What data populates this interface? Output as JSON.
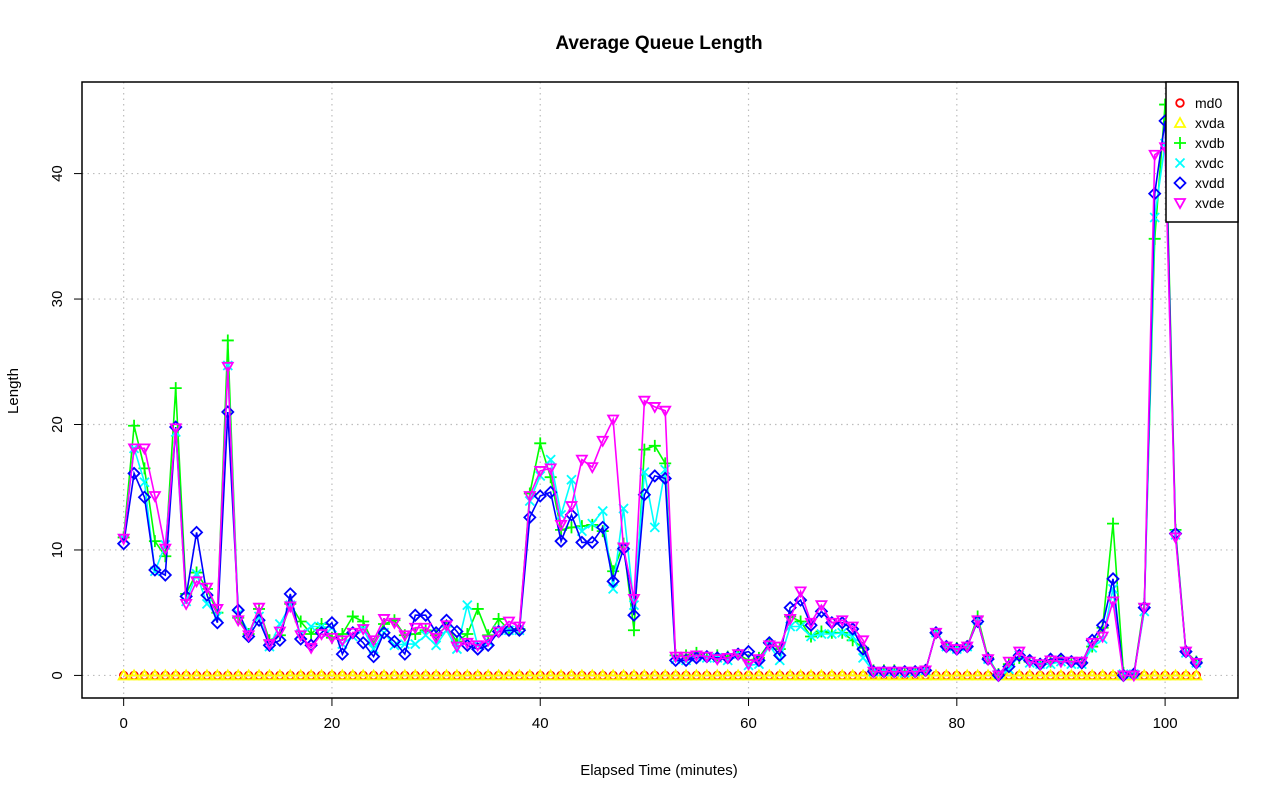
{
  "chart_data": {
    "type": "line",
    "title": "Average Queue Length",
    "xlabel": "Elapsed Time (minutes)",
    "ylabel": "Length",
    "xlim": [
      -4,
      107
    ],
    "ylim": [
      -1.8,
      47.3
    ],
    "x_ticks": [
      0,
      20,
      40,
      60,
      80,
      100
    ],
    "y_ticks": [
      0,
      10,
      20,
      30,
      40
    ],
    "grid": true,
    "legend_position": "top-right",
    "series": [
      {
        "name": "md0",
        "color": "#ff0000",
        "marker": "circle",
        "values": [
          0,
          0,
          0,
          0,
          0,
          0,
          0,
          0,
          0,
          0,
          0,
          0,
          0,
          0,
          0,
          0,
          0,
          0,
          0,
          0,
          0,
          0,
          0,
          0,
          0,
          0,
          0,
          0,
          0,
          0,
          0,
          0,
          0,
          0,
          0,
          0,
          0,
          0,
          0,
          0,
          0,
          0,
          0,
          0,
          0,
          0,
          0,
          0,
          0,
          0,
          0,
          0,
          0,
          0,
          0,
          0,
          0,
          0,
          0,
          0,
          0,
          0,
          0,
          0,
          0,
          0,
          0,
          0,
          0,
          0,
          0,
          0,
          0,
          0,
          0,
          0,
          0,
          0,
          0,
          0,
          0,
          0,
          0,
          0,
          0,
          0,
          0,
          0,
          0,
          0,
          0,
          0,
          0,
          0,
          0,
          0,
          0,
          0,
          0,
          0,
          0,
          0,
          0,
          0
        ]
      },
      {
        "name": "xvda",
        "color": "#ffff00",
        "marker": "triangle",
        "values": [
          0,
          0,
          0,
          0,
          0,
          0,
          0,
          0,
          0,
          0,
          0,
          0,
          0,
          0,
          0,
          0,
          0,
          0,
          0,
          0,
          0,
          0,
          0,
          0,
          0,
          0,
          0,
          0,
          0,
          0,
          0,
          0,
          0,
          0,
          0,
          0,
          0,
          0,
          0,
          0,
          0,
          0,
          0,
          0,
          0,
          0,
          0,
          0,
          0,
          0,
          0,
          0,
          0,
          0,
          0,
          0,
          0,
          0,
          0,
          0,
          0,
          0,
          0,
          0,
          0,
          0,
          0,
          0,
          0,
          0,
          0,
          0,
          0,
          0,
          0,
          0,
          0,
          0,
          0,
          0,
          0,
          0,
          0,
          0,
          0,
          0,
          0,
          0,
          0,
          0,
          0,
          0,
          0,
          0,
          0,
          0,
          0,
          0,
          0,
          0,
          0,
          0,
          0,
          0
        ]
      },
      {
        "name": "xvdb",
        "color": "#00ff00",
        "marker": "plus",
        "values": [
          11,
          19.9,
          16.5,
          10.7,
          9.5,
          22.9,
          6.5,
          8.2,
          6.9,
          5,
          26.7,
          4.6,
          3.3,
          5.3,
          2.8,
          3.2,
          5.7,
          4.3,
          3.3,
          4.1,
          3,
          3.3,
          4.7,
          4.3,
          2.5,
          4.1,
          4.4,
          3.2,
          3.3,
          3.6,
          3.2,
          3.9,
          2.7,
          3.3,
          5.3,
          3.2,
          4.5,
          3.6,
          3.7,
          14.5,
          18.5,
          15.8,
          11.6,
          11.8,
          11.9,
          12,
          11.5,
          8.3,
          10.5,
          3.6,
          18,
          18.3,
          16.9,
          1.6,
          1.6,
          1.8,
          1.5,
          1.6,
          1.5,
          1.7,
          1.2,
          1.4,
          2.6,
          2.1,
          4.7,
          4.3,
          3.1,
          3.5,
          3.4,
          3.4,
          2.8,
          2.2,
          0.4,
          0.4,
          0.4,
          0.3,
          0.3,
          0.4,
          3.4,
          2.3,
          2.2,
          2.3,
          4.7,
          1.4,
          0.1,
          0.9,
          1.4,
          1.1,
          0.9,
          1.1,
          1.3,
          1.1,
          1,
          2.3,
          3.8,
          12.1,
          0.2,
          0.1,
          5.7,
          34.8,
          45.5,
          11.6,
          1.9,
          1.1
        ]
      },
      {
        "name": "xvdc",
        "color": "#00ffff",
        "marker": "cross",
        "values": [
          10.9,
          18.1,
          15.4,
          8.3,
          10.4,
          19.4,
          5.9,
          8.1,
          5.7,
          4.7,
          24.7,
          4.9,
          3.5,
          4.7,
          2.3,
          4.1,
          5.6,
          3.3,
          3.9,
          3.9,
          3.8,
          2.5,
          3.1,
          3.7,
          2.1,
          3.4,
          2.4,
          2.5,
          2.5,
          3.2,
          2.4,
          3.6,
          2.1,
          5.6,
          2.4,
          2.7,
          3.6,
          3.6,
          3.6,
          13.9,
          15.9,
          17.2,
          12.8,
          15.6,
          11.5,
          12.1,
          13.1,
          6.9,
          13.3,
          5.6,
          16.2,
          11.8,
          16.4,
          1.3,
          1.2,
          1.5,
          1.4,
          1.4,
          1.2,
          1.7,
          0.8,
          0.9,
          2.4,
          1.2,
          3.9,
          3.9,
          3.1,
          3.3,
          3.3,
          3.4,
          3.1,
          1.4,
          0.3,
          0.3,
          0.3,
          0.2,
          0.3,
          0.4,
          3.4,
          2.3,
          2.1,
          2.3,
          4.4,
          1.3,
          0.1,
          0.5,
          1.6,
          1,
          0.9,
          0.9,
          1.1,
          0.9,
          0.9,
          2.2,
          2.9,
          6.9,
          0.1,
          0.1,
          5.1,
          36.5,
          42.4,
          11.2,
          1.8,
          1
        ]
      },
      {
        "name": "xvdd",
        "color": "#0000ff",
        "marker": "diamond",
        "values": [
          10.5,
          16.1,
          14.2,
          8.4,
          8,
          19.8,
          6.3,
          11.4,
          6.4,
          4.2,
          21,
          5.2,
          3.1,
          4.4,
          2.4,
          2.8,
          6.5,
          2.9,
          2.4,
          3.4,
          4.2,
          1.7,
          3.4,
          2.6,
          1.5,
          3.4,
          2.7,
          1.7,
          4.8,
          4.8,
          3.4,
          4.4,
          3.5,
          2.4,
          2.1,
          2.4,
          3.5,
          3.6,
          3.6,
          12.6,
          14.3,
          14.6,
          10.7,
          12.8,
          10.6,
          10.6,
          11.8,
          7.5,
          10.1,
          4.8,
          14.4,
          15.9,
          15.7,
          1.2,
          1.2,
          1.4,
          1.5,
          1.4,
          1.4,
          1.7,
          1.9,
          1.2,
          2.6,
          1.6,
          5.4,
          6,
          4,
          5.1,
          4.2,
          4.2,
          3.7,
          2.1,
          0.3,
          0.3,
          0.3,
          0.3,
          0.3,
          0.4,
          3.4,
          2.3,
          2.1,
          2.3,
          4.3,
          1.3,
          0,
          0.7,
          1.6,
          1.2,
          0.9,
          1.3,
          1.3,
          1.1,
          1,
          2.8,
          4,
          7.7,
          0,
          0.1,
          5.4,
          38.4,
          44.2,
          11.3,
          1.9,
          1
        ]
      },
      {
        "name": "xvde",
        "color": "#ff00ff",
        "marker": "triangle-down",
        "values": [
          10.9,
          18.1,
          18.1,
          14.3,
          10.1,
          19.7,
          5.7,
          7.5,
          7,
          5.3,
          24.6,
          4.4,
          3.2,
          5.4,
          2.5,
          3.5,
          5.5,
          3.2,
          2.2,
          3.3,
          3,
          2.8,
          3.4,
          3.7,
          2.8,
          4.5,
          4.2,
          3.2,
          3.8,
          3.8,
          3,
          4,
          2.3,
          2.6,
          2.4,
          2.8,
          3.5,
          4.3,
          3.9,
          14.3,
          16.3,
          16.5,
          12,
          13.5,
          17.2,
          16.6,
          18.7,
          20.4,
          10.2,
          6.1,
          21.9,
          21.4,
          21.1,
          1.5,
          1.5,
          1.6,
          1.5,
          1.3,
          1.4,
          1.7,
          0.9,
          1.3,
          2.4,
          2.3,
          4.5,
          6.7,
          4.2,
          5.6,
          4.2,
          4.4,
          3.9,
          2.8,
          0.3,
          0.3,
          0.3,
          0.3,
          0.3,
          0.4,
          3.4,
          2.3,
          2.1,
          2.3,
          4.4,
          1.3,
          0,
          1.1,
          1.9,
          1.1,
          0.9,
          1.2,
          1.1,
          1.1,
          1.1,
          2.6,
          3.1,
          5.9,
          0,
          0,
          5.4,
          41.5,
          42.1,
          11,
          1.9,
          1
        ]
      }
    ]
  }
}
